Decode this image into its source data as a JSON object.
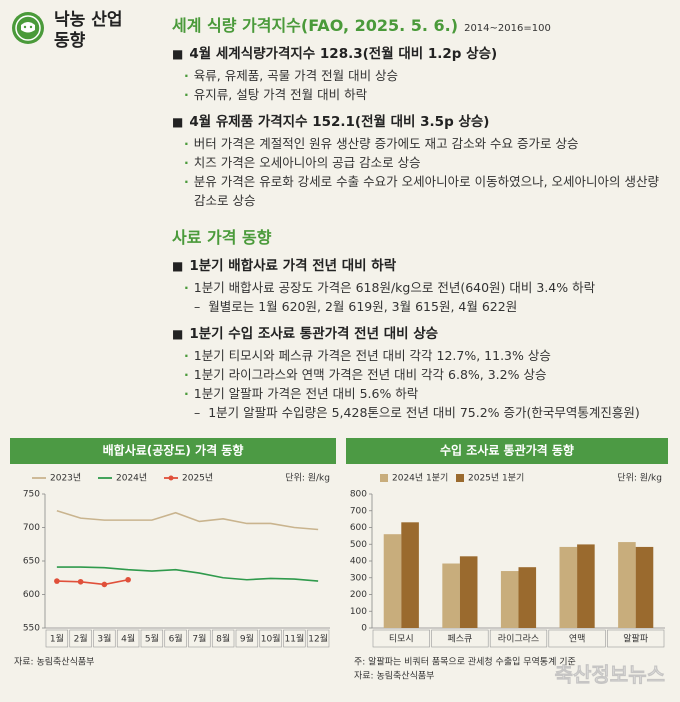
{
  "header": {
    "title_lines": [
      "낙농 산업",
      "동향"
    ]
  },
  "sections": [
    {
      "title": "세계 식량 가격지수(FAO, 2025. 5. 6.)",
      "note": "2014~2016=100",
      "items": [
        {
          "heading": "4월 세계식량가격지수 128.3(전월 대비 1.2p 상승)",
          "bullets": [
            {
              "text": "육류, 유제품, 곡물 가격 전월 대비 상승"
            },
            {
              "text": "유지류, 설탕 가격 전월 대비 하락"
            }
          ]
        },
        {
          "heading": "4월 유제품 가격지수 152.1(전월 대비 3.5p 상승)",
          "bullets": [
            {
              "text": "버터 가격은 계절적인 원유 생산량 증가에도 재고 감소와 수요 증가로 상승"
            },
            {
              "text": "치즈 가격은 오세아니아의 공급 감소로 상승"
            },
            {
              "text": "분유 가격은 유로화 강세로 수출 수요가 오세아니아로 이동하였으나, 오세아니아의 생산량 감소로 상승"
            }
          ]
        }
      ]
    },
    {
      "title": "사료 가격 동향",
      "items": [
        {
          "heading": "1분기 배합사료 가격 전년 대비 하락",
          "bullets": [
            {
              "text": "1분기 배합사료 공장도 가격은 618원/kg으로 전년(640원) 대비 3.4% 하락",
              "sub": "월별로는 1월 620원, 2월 619원, 3월 615원, 4월 622원"
            }
          ]
        },
        {
          "heading": "1분기 수입 조사료 통관가격 전년 대비 상승",
          "bullets": [
            {
              "text": "1분기 티모시와 페스큐 가격은 전년 대비 각각 12.7%, 11.3% 상승"
            },
            {
              "text": "1분기 라이그라스와 연맥 가격은 전년 대비 각각 6.8%, 3.2% 상승"
            },
            {
              "text": "1분기 알팔파 가격은 전년 대비 5.6% 하락",
              "sub": "1분기 알팔파 수입량은 5,428톤으로 전년 대비 75.2% 증가(한국무역통계진흥원)"
            }
          ]
        }
      ]
    }
  ],
  "chart_data": [
    {
      "type": "line",
      "title": "배합사료(공장도) 가격 동향",
      "unit": "단위: 원/kg",
      "source": "자료: 농림축산식품부",
      "categories": [
        "1월",
        "2월",
        "3월",
        "4월",
        "5월",
        "6월",
        "7월",
        "8월",
        "9월",
        "10월",
        "11월",
        "12월"
      ],
      "series": [
        {
          "name": "2023년",
          "color": "#c9b48e",
          "values": [
            725,
            714,
            711,
            711,
            711,
            722,
            709,
            713,
            706,
            706,
            700,
            697
          ]
        },
        {
          "name": "2024년",
          "color": "#2f9a4c",
          "values": [
            641,
            641,
            640,
            637,
            635,
            637,
            632,
            625,
            622,
            624,
            623,
            620
          ]
        },
        {
          "name": "2025년",
          "color": "#e0503a",
          "markers": true,
          "values": [
            620,
            619,
            615,
            622,
            null,
            null,
            null,
            null,
            null,
            null,
            null,
            null
          ]
        }
      ],
      "ylim": [
        550,
        750
      ],
      "yticks": [
        550,
        600,
        650,
        700,
        750
      ],
      "grid": false
    },
    {
      "type": "bar",
      "title": "수입 조사료 통관가격 동향",
      "unit": "단위: 원/kg",
      "note": "주: 알팔파는 비쿼터 품목으로 관세청 수출입 무역통계 기준",
      "source": "자료: 농림축산식품부",
      "categories": [
        "티모시",
        "페스큐",
        "라이그라스",
        "연맥",
        "알팔파"
      ],
      "series": [
        {
          "name": "2024년 1분기",
          "color": "#c8ad7c",
          "values": [
            560,
            385,
            340,
            484,
            513
          ]
        },
        {
          "name": "2025년 1분기",
          "color": "#9a6a2e",
          "values": [
            631,
            428,
            363,
            499,
            484
          ]
        }
      ],
      "ylim": [
        0,
        800
      ],
      "yticks": [
        0,
        100,
        200,
        300,
        400,
        500,
        600,
        700,
        800
      ],
      "grid": false
    }
  ],
  "watermark": "축산정보뉴스"
}
